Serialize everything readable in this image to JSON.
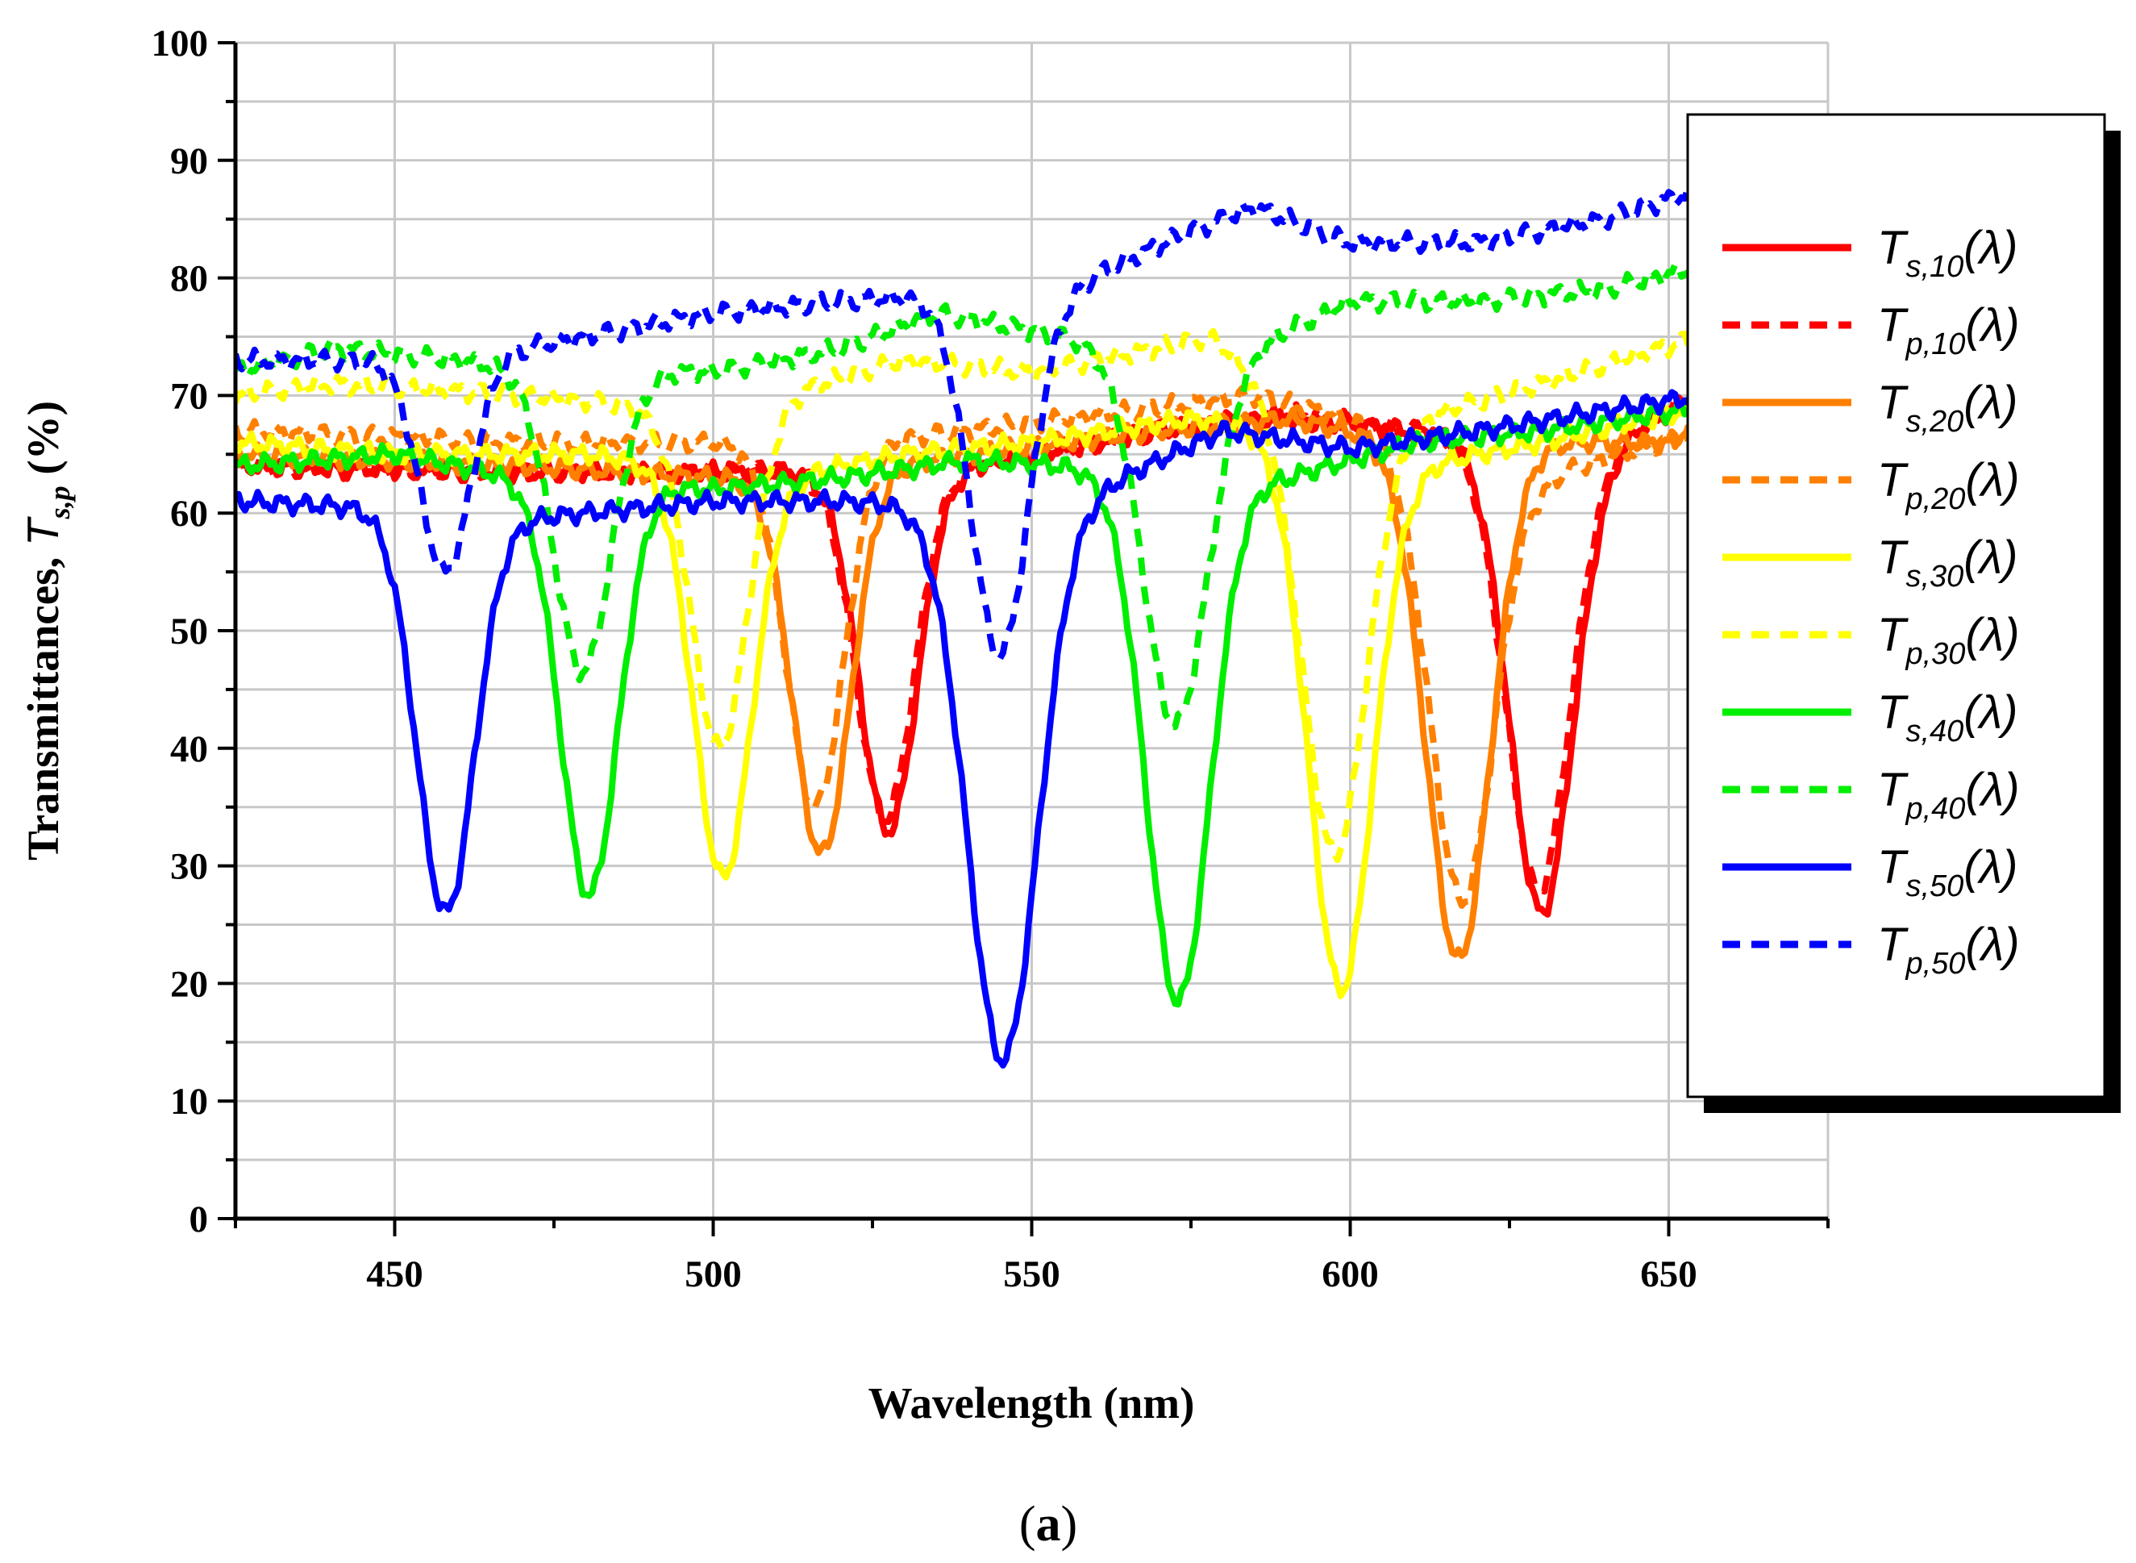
{
  "chart_data": {
    "type": "line",
    "title": "",
    "xlabel": "Wavelength (nm)",
    "ylabel_main": "Transmittances, ",
    "ylabel_symbol": "T",
    "ylabel_sub": "s,p",
    "ylabel_unit": " (%)",
    "caption_open": "(",
    "caption_letter": "a",
    "caption_close": ")",
    "xlim": [
      425,
      675
    ],
    "ylim": [
      0,
      100
    ],
    "x_ticks": [
      450,
      500,
      550,
      600,
      650
    ],
    "x_tick_labels": [
      "450",
      "500",
      "550",
      "600",
      "650"
    ],
    "y_ticks": [
      0,
      10,
      20,
      30,
      40,
      50,
      60,
      70,
      80,
      90,
      100
    ],
    "y_tick_labels": [
      "0",
      "10",
      "20",
      "30",
      "40",
      "50",
      "60",
      "70",
      "80",
      "90",
      "100"
    ],
    "grid": true,
    "legend_position": "right",
    "series": [
      {
        "name": "Ts,10(λ)",
        "symbol": "T",
        "sub": "s,10",
        "suffix": "(λ)",
        "color": "#ff0000",
        "style": "solid",
        "baseline": [
          [
            425,
            64
          ],
          [
            470,
            63.5
          ],
          [
            510,
            63.5
          ],
          [
            540,
            64
          ],
          [
            570,
            67
          ],
          [
            590,
            68
          ],
          [
            610,
            67
          ],
          [
            640,
            66
          ],
          [
            655,
            70
          ]
        ],
        "dips": [
          {
            "center": 527.5,
            "min": 33,
            "width": 4.5
          },
          {
            "center": 630,
            "min": 26,
            "width": 5
          }
        ]
      },
      {
        "name": "Tp,10(λ)",
        "symbol": "T",
        "sub": "p,10",
        "suffix": "(λ)",
        "color": "#ff0000",
        "style": "dashed",
        "baseline": [
          [
            425,
            64
          ],
          [
            470,
            63.5
          ],
          [
            510,
            63.5
          ],
          [
            540,
            64
          ],
          [
            570,
            67
          ],
          [
            590,
            68.5
          ],
          [
            610,
            67
          ],
          [
            640,
            66
          ],
          [
            655,
            70
          ]
        ],
        "dips": [
          {
            "center": 527,
            "min": 34,
            "width": 4.5
          },
          {
            "center": 629.5,
            "min": 28,
            "width": 5
          }
        ]
      },
      {
        "name": "Ts,20(λ)",
        "symbol": "T",
        "sub": "s,20",
        "suffix": "(λ)",
        "color": "#ff8000",
        "style": "solid",
        "baseline": [
          [
            425,
            65
          ],
          [
            470,
            64
          ],
          [
            500,
            63
          ],
          [
            520,
            63.5
          ],
          [
            540,
            65
          ],
          [
            570,
            67
          ],
          [
            590,
            68
          ],
          [
            610,
            66
          ],
          [
            650,
            66
          ],
          [
            655,
            68
          ]
        ],
        "dips": [
          {
            "center": 517,
            "min": 31,
            "width": 4.5
          },
          {
            "center": 617,
            "min": 22,
            "width": 5
          }
        ]
      },
      {
        "name": "Tp,20(λ)",
        "symbol": "T",
        "sub": "p,20",
        "suffix": "(λ)",
        "color": "#ff8000",
        "style": "dashed",
        "baseline": [
          [
            425,
            67
          ],
          [
            470,
            66
          ],
          [
            500,
            66
          ],
          [
            520,
            66
          ],
          [
            540,
            67
          ],
          [
            570,
            69
          ],
          [
            585,
            70
          ],
          [
            600,
            68
          ],
          [
            630,
            63
          ],
          [
            655,
            67
          ]
        ],
        "dips": [
          {
            "center": 516,
            "min": 35,
            "width": 4.5
          },
          {
            "center": 617.5,
            "min": 27,
            "width": 5
          }
        ]
      },
      {
        "name": "Ts,30(λ)",
        "symbol": "T",
        "sub": "s,30",
        "suffix": "(λ)",
        "color": "#ffff00",
        "style": "solid",
        "baseline": [
          [
            425,
            66
          ],
          [
            450,
            65
          ],
          [
            480,
            65
          ],
          [
            510,
            63
          ],
          [
            530,
            65
          ],
          [
            550,
            66
          ],
          [
            575,
            68
          ],
          [
            590,
            67
          ],
          [
            610,
            64
          ],
          [
            630,
            66
          ],
          [
            655,
            69
          ]
        ],
        "dips": [
          {
            "center": 501.5,
            "min": 29,
            "width": 4.5
          },
          {
            "center": 598.5,
            "min": 19.5,
            "width": 5
          }
        ]
      },
      {
        "name": "Tp,30(λ)",
        "symbol": "T",
        "sub": "p,30",
        "suffix": "(λ)",
        "color": "#ffff00",
        "style": "dashed",
        "baseline": [
          [
            425,
            70
          ],
          [
            440,
            71
          ],
          [
            470,
            70
          ],
          [
            490,
            69
          ],
          [
            510,
            70
          ],
          [
            530,
            73
          ],
          [
            550,
            72
          ],
          [
            570,
            74
          ],
          [
            578,
            75
          ],
          [
            590,
            70
          ],
          [
            610,
            68
          ],
          [
            630,
            71
          ],
          [
            655,
            75
          ]
        ],
        "dips": [
          {
            "center": 501,
            "min": 40,
            "width": 4.5
          },
          {
            "center": 597.5,
            "min": 31,
            "width": 5
          }
        ]
      },
      {
        "name": "Ts,40(λ)",
        "symbol": "T",
        "sub": "s,40",
        "suffix": "(λ)",
        "color": "#00ee00",
        "style": "solid",
        "baseline": [
          [
            425,
            64
          ],
          [
            450,
            65
          ],
          [
            470,
            63
          ],
          [
            500,
            62
          ],
          [
            520,
            63
          ],
          [
            540,
            64.5
          ],
          [
            555,
            64
          ],
          [
            570,
            63
          ],
          [
            590,
            63
          ],
          [
            610,
            66
          ],
          [
            630,
            67
          ],
          [
            655,
            69
          ]
        ],
        "dips": [
          {
            "center": 480.5,
            "min": 27.5,
            "width": 4.5
          },
          {
            "center": 573,
            "min": 18.5,
            "width": 5
          }
        ]
      },
      {
        "name": "Tp,40(λ)",
        "symbol": "T",
        "sub": "p,40",
        "suffix": "(λ)",
        "color": "#00ee00",
        "style": "dashed",
        "baseline": [
          [
            425,
            72
          ],
          [
            440,
            74
          ],
          [
            460,
            73
          ],
          [
            475,
            72
          ],
          [
            500,
            72
          ],
          [
            520,
            74
          ],
          [
            535,
            77
          ],
          [
            555,
            75
          ],
          [
            580,
            73
          ],
          [
            600,
            78
          ],
          [
            620,
            78
          ],
          [
            640,
            79
          ],
          [
            655,
            81
          ]
        ],
        "dips": [
          {
            "center": 479.5,
            "min": 46.5,
            "width": 4.5
          },
          {
            "center": 572.5,
            "min": 42,
            "width": 5
          }
        ]
      },
      {
        "name": "Ts,50(λ)",
        "symbol": "T",
        "sub": "s,50",
        "suffix": "(λ)",
        "color": "#0000ff",
        "style": "solid",
        "baseline": [
          [
            425,
            61
          ],
          [
            445,
            60.5
          ],
          [
            470,
            59.5
          ],
          [
            500,
            61
          ],
          [
            520,
            61
          ],
          [
            540,
            60.5
          ],
          [
            560,
            62
          ],
          [
            580,
            67
          ],
          [
            600,
            65.5
          ],
          [
            620,
            67
          ],
          [
            655,
            70
          ]
        ],
        "dips": [
          {
            "center": 458,
            "min": 26,
            "width": 4.5
          },
          {
            "center": 545.5,
            "min": 13.5,
            "width": 5.5
          }
        ]
      },
      {
        "name": "Tp,50(λ)",
        "symbol": "T",
        "sub": "p,50",
        "suffix": "(λ)",
        "color": "#0000ff",
        "style": "dashed",
        "baseline": [
          [
            425,
            73
          ],
          [
            450,
            73
          ],
          [
            470,
            74
          ],
          [
            500,
            77
          ],
          [
            520,
            78
          ],
          [
            533,
            78.5
          ],
          [
            555,
            79
          ],
          [
            575,
            84
          ],
          [
            585,
            86
          ],
          [
            600,
            83
          ],
          [
            620,
            83
          ],
          [
            640,
            85
          ],
          [
            655,
            87.5
          ]
        ],
        "dips": [
          {
            "center": 458,
            "min": 55,
            "width": 4
          },
          {
            "center": 545,
            "min": 48,
            "width": 4.5
          }
        ]
      }
    ]
  }
}
